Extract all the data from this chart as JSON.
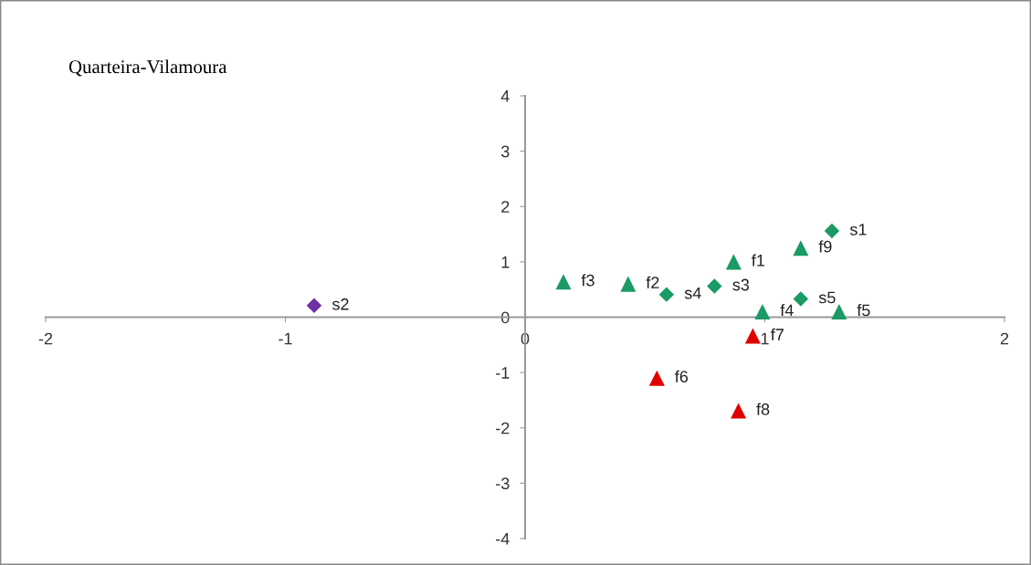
{
  "chart_data": {
    "type": "scatter",
    "title": "Quarteira-Vilamoura",
    "xlim": [
      -2,
      2
    ],
    "xticks": [
      -2,
      -1,
      0,
      1,
      2
    ],
    "ylim": [
      -4,
      4
    ],
    "yticks": [
      -4,
      -3,
      -2,
      -1,
      0,
      1,
      2,
      3,
      4
    ],
    "grid": false,
    "legend": false,
    "series": [
      {
        "color": "#1a9a64",
        "marker": "triangle",
        "x": [
          0.87,
          0.43,
          0.16,
          0.99,
          1.31,
          1.15
        ],
        "values": [
          1.0,
          0.6,
          0.64,
          0.1,
          0.1,
          1.25
        ]
      },
      {
        "color": "#1a9a64",
        "marker": "diamond",
        "x": [
          1.28,
          0.79,
          0.59,
          1.15
        ],
        "values": [
          1.56,
          0.56,
          0.41,
          0.33
        ]
      },
      {
        "color": "#7030a0",
        "marker": "diamond",
        "x": [
          -0.88
        ],
        "values": [
          0.21
        ]
      },
      {
        "color": "#e00000",
        "marker": "triangle",
        "x": [
          0.55,
          0.95,
          0.89
        ],
        "values": [
          -1.1,
          -0.34,
          -1.69
        ]
      }
    ],
    "annotations": [
      {
        "text": "f1",
        "x": 0.87,
        "y": 1.0
      },
      {
        "text": "f2",
        "x": 0.43,
        "y": 0.6
      },
      {
        "text": "f3",
        "x": 0.16,
        "y": 0.64
      },
      {
        "text": "f4",
        "x": 0.99,
        "y": 0.1
      },
      {
        "text": "f5",
        "x": 1.31,
        "y": 0.1
      },
      {
        "text": "f9",
        "x": 1.15,
        "y": 1.25
      },
      {
        "text": "s1",
        "x": 1.28,
        "y": 1.56
      },
      {
        "text": "s3",
        "x": 0.79,
        "y": 0.56
      },
      {
        "text": "s4",
        "x": 0.59,
        "y": 0.41
      },
      {
        "text": "s5",
        "x": 1.15,
        "y": 0.33
      },
      {
        "text": "s2",
        "x": -0.88,
        "y": 0.21
      },
      {
        "text": "f6",
        "x": 0.55,
        "y": -1.1
      },
      {
        "text": "f7",
        "x": 0.95,
        "y": -0.34
      },
      {
        "text": "f8",
        "x": 0.89,
        "y": -1.69
      }
    ]
  }
}
